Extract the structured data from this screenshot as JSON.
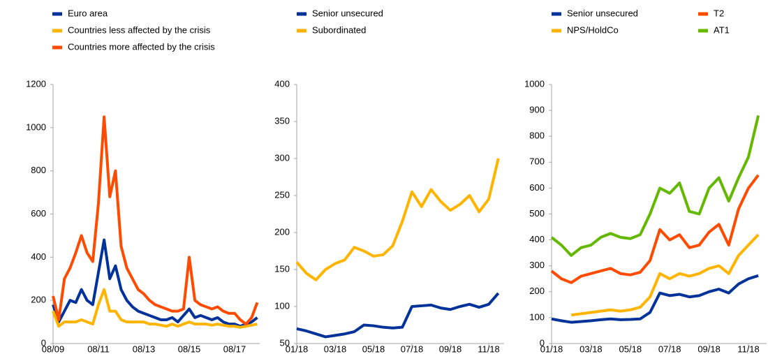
{
  "chart_data": [
    {
      "type": "line",
      "categories": [
        "08/09",
        null,
        null,
        null,
        null,
        null,
        null,
        null,
        "08/11",
        null,
        null,
        null,
        null,
        null,
        null,
        null,
        "08/13",
        null,
        null,
        null,
        null,
        null,
        null,
        null,
        "08/15",
        null,
        null,
        null,
        null,
        null,
        null,
        null,
        "08/17",
        null,
        null,
        null,
        null
      ],
      "series": [
        {
          "name": "Euro area",
          "color": "#003299",
          "values": [
            180,
            100,
            150,
            200,
            190,
            250,
            200,
            180,
            330,
            480,
            300,
            360,
            250,
            200,
            170,
            150,
            140,
            130,
            120,
            110,
            110,
            120,
            100,
            130,
            160,
            120,
            130,
            120,
            110,
            120,
            100,
            90,
            90,
            80,
            90,
            100,
            120
          ]
        },
        {
          "name": "Countries less affected by the crisis",
          "color": "#ffb400",
          "values": [
            150,
            80,
            100,
            100,
            100,
            110,
            100,
            90,
            180,
            250,
            150,
            150,
            110,
            100,
            100,
            100,
            100,
            90,
            90,
            85,
            80,
            90,
            80,
            90,
            100,
            90,
            90,
            90,
            85,
            90,
            85,
            80,
            80,
            75,
            80,
            85,
            90
          ]
        },
        {
          "name": "Countries more affected by the crisis",
          "color": "#ff4b00",
          "values": [
            220,
            110,
            300,
            350,
            420,
            500,
            420,
            380,
            650,
            1050,
            680,
            800,
            450,
            350,
            300,
            250,
            230,
            200,
            180,
            170,
            160,
            150,
            150,
            160,
            400,
            200,
            180,
            170,
            160,
            170,
            150,
            140,
            140,
            110,
            90,
            120,
            190
          ]
        }
      ],
      "ylim": [
        0,
        1200
      ],
      "yticks": [
        0,
        200,
        400,
        600,
        800,
        1000,
        1200
      ]
    },
    {
      "type": "line",
      "categories": [
        "01/18",
        null,
        null,
        null,
        "03/18",
        null,
        null,
        null,
        "05/18",
        null,
        null,
        null,
        "07/18",
        null,
        null,
        null,
        "09/18",
        null,
        null,
        null,
        "11/18",
        null
      ],
      "series": [
        {
          "name": "Senior unsecured",
          "color": "#003299",
          "values": [
            70,
            67,
            63,
            59,
            61,
            63,
            66,
            75,
            74,
            72,
            71,
            72,
            100,
            101,
            102,
            98,
            96,
            100,
            103,
            99,
            103,
            118
          ]
        },
        {
          "name": "Subordinated",
          "color": "#ffb400",
          "values": [
            160,
            145,
            136,
            150,
            158,
            163,
            180,
            175,
            168,
            170,
            182,
            215,
            255,
            235,
            258,
            242,
            230,
            238,
            250,
            228,
            245,
            300
          ]
        }
      ],
      "ylim": [
        50,
        400
      ],
      "yticks": [
        50,
        100,
        150,
        200,
        250,
        300,
        350,
        400
      ]
    },
    {
      "type": "line",
      "categories": [
        "01/18",
        null,
        null,
        null,
        "03/18",
        null,
        null,
        null,
        "05/18",
        null,
        null,
        null,
        "07/18",
        null,
        null,
        null,
        "09/18",
        null,
        null,
        null,
        "11/18",
        null
      ],
      "series": [
        {
          "name": "Senior unsecured",
          "color": "#003299",
          "values": [
            95,
            88,
            82,
            85,
            88,
            92,
            95,
            92,
            93,
            95,
            120,
            195,
            185,
            190,
            180,
            185,
            200,
            210,
            195,
            230,
            250,
            262
          ]
        },
        {
          "name": "NPS/HoldCo",
          "color": "#ffb400",
          "values": [
            null,
            null,
            110,
            115,
            120,
            125,
            130,
            125,
            130,
            140,
            180,
            270,
            250,
            270,
            260,
            270,
            290,
            300,
            270,
            340,
            380,
            420
          ]
        },
        {
          "name": "T2",
          "color": "#ff4b00",
          "values": [
            280,
            250,
            235,
            260,
            270,
            280,
            290,
            270,
            265,
            275,
            320,
            440,
            400,
            420,
            370,
            380,
            430,
            460,
            380,
            520,
            600,
            650
          ]
        },
        {
          "name": "AT1",
          "color": "#65b800",
          "values": [
            410,
            380,
            340,
            370,
            380,
            410,
            425,
            410,
            405,
            420,
            500,
            600,
            580,
            620,
            510,
            500,
            600,
            640,
            550,
            640,
            720,
            880
          ]
        }
      ],
      "ylim": [
        0,
        1000
      ],
      "yticks": [
        0,
        100,
        200,
        300,
        400,
        500,
        600,
        700,
        800,
        900,
        1000
      ]
    }
  ]
}
